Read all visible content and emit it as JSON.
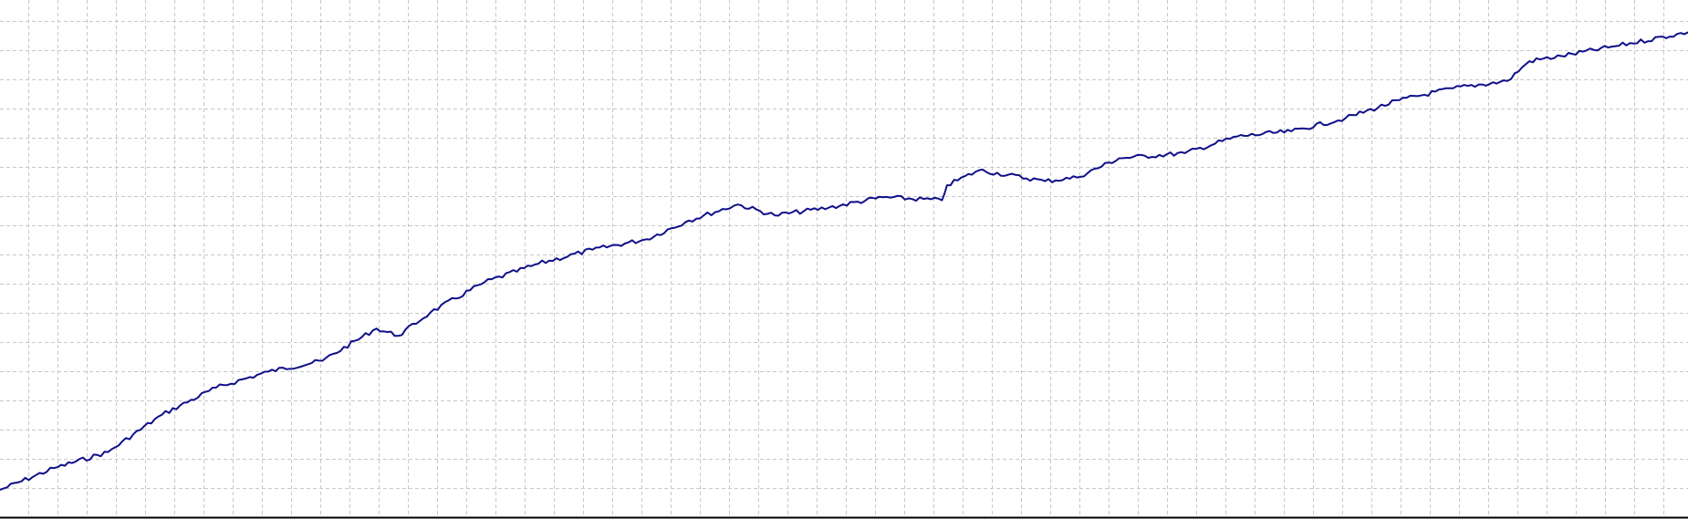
{
  "chart_data": {
    "type": "line",
    "title": "",
    "xlabel": "",
    "ylabel": "",
    "grid": true,
    "grid_style": "dashed",
    "xlim": [
      0,
      100
    ],
    "ylim": [
      0,
      100
    ],
    "series": [
      {
        "color": "#0f0f8a",
        "x": [
          0,
          3.2,
          6.4,
          9.6,
          12.8,
          15.9,
          19.1,
          22.3,
          23.6,
          25.5,
          28.7,
          31.9,
          35.1,
          38.3,
          40.8,
          43.7,
          45.9,
          49.1,
          52.3,
          55.8,
          56.1,
          58.0,
          61.9,
          63.8,
          66.3,
          70.2,
          73.3,
          76.5,
          79.7,
          82.9,
          86.1,
          89.3,
          90.6,
          92.5,
          95.7,
          100
        ],
        "y": [
          5.6,
          9.8,
          12.9,
          20.1,
          25.3,
          28.4,
          30.5,
          36.7,
          35.3,
          39.8,
          45.6,
          49.2,
          51.9,
          53.9,
          57.5,
          60.6,
          58.5,
          60.0,
          62.0,
          61.4,
          64.3,
          67.2,
          65.1,
          65.8,
          69.5,
          70.5,
          73.7,
          74.7,
          77.2,
          80.7,
          83.0,
          84.4,
          88.2,
          89.2,
          91.1,
          93.8
        ]
      }
    ],
    "colors": {
      "grid": "#c8c8c8",
      "axis": "#000000",
      "background": "#ffffff"
    }
  }
}
